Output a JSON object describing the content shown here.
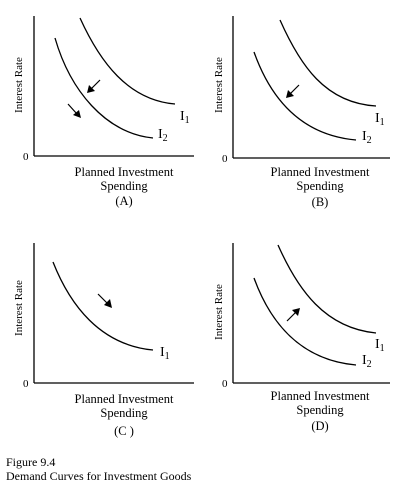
{
  "caption": {
    "figure_number": "Figure 9.4",
    "title": "Demand Curves for Investment Goods"
  },
  "chart_data": [
    {
      "type": "line",
      "panel_label": "(A)",
      "ylabel": "Interest Rate",
      "xlabel_lines": [
        "Planned Investment",
        "Spending"
      ],
      "origin_label": "0",
      "series": [
        {
          "name": "I",
          "subscript": "1",
          "level": 1.0
        },
        {
          "name": "I",
          "subscript": "2",
          "level": 0.55
        }
      ],
      "arrows": [
        {
          "from_series": 0,
          "to_series": 1,
          "direction": "down-left"
        },
        {
          "along_series": 1,
          "direction": "down-right"
        }
      ]
    },
    {
      "type": "line",
      "panel_label": "(B)",
      "ylabel": "Interest Rate",
      "xlabel_lines": [
        "Planned Investment",
        "Spending"
      ],
      "origin_label": "0",
      "series": [
        {
          "name": "I",
          "subscript": "1",
          "level": 1.0
        },
        {
          "name": "I",
          "subscript": "2",
          "level": 0.55
        }
      ],
      "arrows": [
        {
          "from_series": 0,
          "to_series": 1,
          "direction": "down-left"
        }
      ]
    },
    {
      "type": "line",
      "panel_label": "(C )",
      "ylabel": "Interest Rate",
      "xlabel_lines": [
        "Planned Investment",
        "Spending"
      ],
      "origin_label": "0",
      "series": [
        {
          "name": "I",
          "subscript": "1",
          "level": 0.75
        }
      ],
      "arrows": [
        {
          "along_series": 0,
          "direction": "down-right"
        }
      ]
    },
    {
      "type": "line",
      "panel_label": "(D)",
      "ylabel": "Interest Rate",
      "xlabel_lines": [
        "Planned Investment",
        "Spending"
      ],
      "origin_label": "0",
      "series": [
        {
          "name": "I",
          "subscript": "1",
          "level": 1.0
        },
        {
          "name": "I",
          "subscript": "2",
          "level": 0.55
        }
      ],
      "arrows": [
        {
          "from_series": 1,
          "to_series": 0,
          "direction": "up-right"
        }
      ]
    }
  ]
}
